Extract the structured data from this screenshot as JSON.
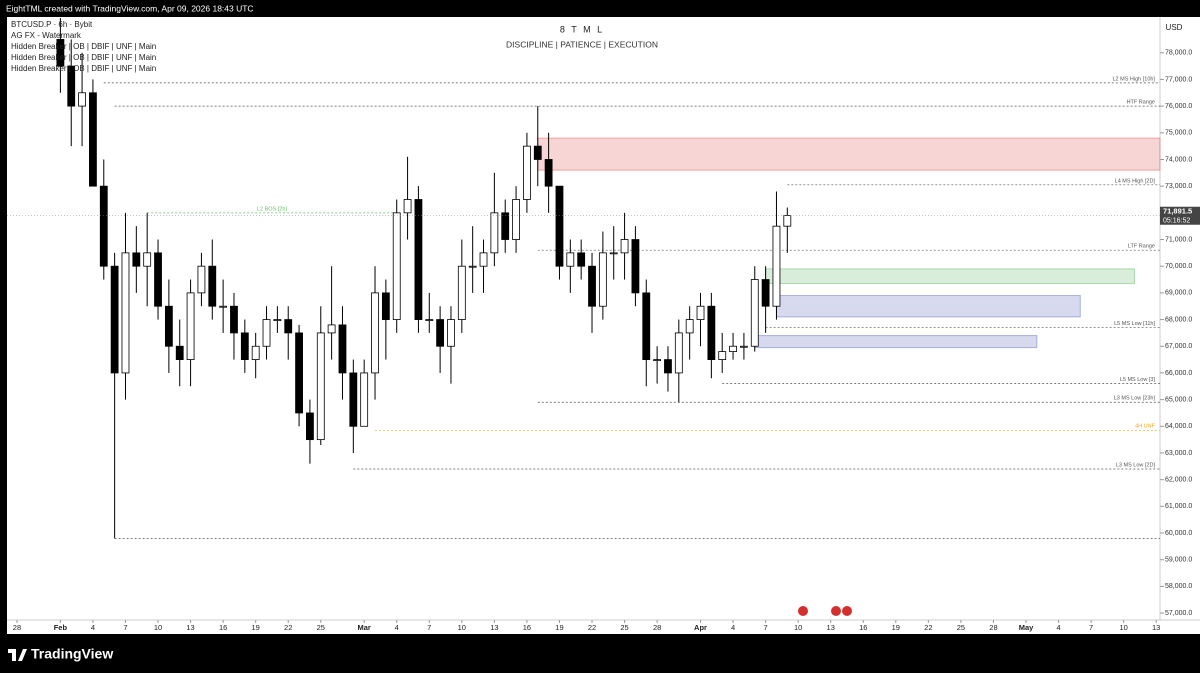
{
  "header": {
    "credit": "EightTML created with TradingView.com, Apr 09, 2026 18:43 UTC",
    "brand": "TradingView"
  },
  "chart_data": {
    "type": "candlestick",
    "title": "8 T M L",
    "subtitle": "DISCIPLINE | PATIENCE | EXECUTION",
    "legend_lines": [
      "BTCUSD.P · 6h · Bybit",
      "AG FX - Watermark",
      "Hidden Breaker | OB | DBIF | UNF | Main",
      "Hidden Breaker | OB | DBIF | UNF | Main",
      "Hidden Breaker | OB | DBIF | UNF | Main"
    ],
    "currency": "USD",
    "up_color": "#ffffff",
    "down_color": "#000000",
    "wick_color": "#000000",
    "x": [
      4,
      5,
      6,
      7,
      8,
      9,
      10,
      11,
      12,
      13,
      14,
      15,
      16,
      17,
      18,
      19,
      20,
      21,
      22,
      23,
      24,
      25,
      26,
      27,
      28,
      29,
      30,
      31,
      32,
      33,
      34,
      35,
      36,
      37,
      38,
      39,
      40,
      41,
      42,
      43,
      44,
      45,
      46,
      47,
      48,
      49,
      50,
      51,
      52,
      53,
      54,
      55,
      56,
      57,
      58,
      59,
      60,
      61,
      62,
      63,
      64,
      65,
      66,
      67,
      68,
      69,
      70,
      71
    ],
    "open": [
      78500,
      77500,
      76000,
      76500,
      73000,
      70000,
      66000,
      70500,
      70000,
      70500,
      68500,
      67000,
      66500,
      69000,
      70000,
      68500,
      68500,
      67500,
      66500,
      67000,
      68000,
      68000,
      67500,
      64500,
      63500,
      67500,
      67800,
      66000,
      64000,
      66000,
      69000,
      68000,
      72000,
      72500,
      68000,
      68000,
      67000,
      68000,
      70000,
      70000,
      70500,
      72000,
      71000,
      72500,
      74500,
      74000,
      73000,
      70000,
      70500,
      70000,
      68500,
      70500,
      70500,
      71000,
      69000,
      66500,
      66500,
      66000,
      67500,
      68000,
      68500,
      66500,
      66800,
      67000,
      67000,
      69500,
      68500,
      71500
    ],
    "high": [
      79300,
      78500,
      78000,
      77000,
      74000,
      70500,
      72000,
      71500,
      72000,
      71000,
      69500,
      68000,
      69500,
      70500,
      71000,
      69500,
      69000,
      68000,
      67500,
      68500,
      68500,
      68500,
      67800,
      65000,
      68500,
      70000,
      68500,
      66500,
      66500,
      70000,
      69500,
      72500,
      74100,
      73000,
      69000,
      68500,
      68500,
      71000,
      71500,
      71000,
      73500,
      72500,
      73000,
      75000,
      76000,
      75000,
      73000,
      71000,
      71000,
      70500,
      71300,
      71500,
      72000,
      71500,
      69500,
      67000,
      67000,
      68000,
      68500,
      69000,
      69000,
      67500,
      67500,
      67500,
      70000,
      70000,
      72800,
      72200
    ],
    "low": [
      76500,
      74500,
      74500,
      73000,
      69500,
      59800,
      65000,
      69000,
      68500,
      68000,
      66000,
      65500,
      65500,
      68500,
      68000,
      67500,
      66500,
      66000,
      65800,
      66500,
      67500,
      66500,
      64000,
      62600,
      63300,
      66500,
      65000,
      63000,
      64000,
      65000,
      66500,
      67500,
      71000,
      67500,
      67500,
      66000,
      65600,
      67500,
      69000,
      69000,
      70000,
      70500,
      70500,
      72000,
      73000,
      72000,
      69500,
      69000,
      69500,
      67500,
      68000,
      69500,
      69500,
      68500,
      65500,
      65600,
      65300,
      64900,
      66500,
      67000,
      65800,
      66000,
      66500,
      66500,
      66800,
      67500,
      68000,
      70500
    ],
    "close": [
      77500,
      76000,
      76500,
      73000,
      70000,
      66000,
      70500,
      70000,
      70500,
      68500,
      67000,
      66500,
      69000,
      70000,
      68500,
      68500,
      67500,
      66500,
      67000,
      68000,
      68000,
      67500,
      64500,
      63500,
      67500,
      67800,
      66000,
      64000,
      66000,
      69000,
      68000,
      72000,
      72500,
      68000,
      68000,
      67000,
      68000,
      70000,
      70000,
      70500,
      72000,
      71000,
      72500,
      74500,
      74000,
      73000,
      70000,
      70500,
      70000,
      68500,
      70500,
      70500,
      71000,
      69000,
      66500,
      66500,
      66000,
      67500,
      68000,
      68500,
      66500,
      66800,
      67000,
      67000,
      69500,
      68500,
      71500,
      71900
    ],
    "xlim": [
      -0.92,
      105.35
    ],
    "xticks": [
      {
        "value": 0,
        "label": "28"
      },
      {
        "value": 4,
        "label": "Feb"
      },
      {
        "value": 7,
        "label": "4"
      },
      {
        "value": 10,
        "label": "7"
      },
      {
        "value": 13,
        "label": "10"
      },
      {
        "value": 16,
        "label": "13"
      },
      {
        "value": 19,
        "label": "16"
      },
      {
        "value": 22,
        "label": "19"
      },
      {
        "value": 25,
        "label": "22"
      },
      {
        "value": 28,
        "label": "25"
      },
      {
        "value": 32,
        "label": "Mar"
      },
      {
        "value": 35,
        "label": "4"
      },
      {
        "value": 38,
        "label": "7"
      },
      {
        "value": 41,
        "label": "10"
      },
      {
        "value": 44,
        "label": "13"
      },
      {
        "value": 47,
        "label": "16"
      },
      {
        "value": 50,
        "label": "19"
      },
      {
        "value": 53,
        "label": "22"
      },
      {
        "value": 56,
        "label": "25"
      },
      {
        "value": 59,
        "label": "28"
      },
      {
        "value": 63,
        "label": "Apr"
      },
      {
        "value": 66,
        "label": "4"
      },
      {
        "value": 69,
        "label": "7"
      },
      {
        "value": 72,
        "label": "10"
      },
      {
        "value": 75,
        "label": "13"
      },
      {
        "value": 78,
        "label": "16"
      },
      {
        "value": 81,
        "label": "19"
      },
      {
        "value": 84,
        "label": "22"
      },
      {
        "value": 87,
        "label": "25"
      },
      {
        "value": 90,
        "label": "28"
      },
      {
        "value": 93,
        "label": "May"
      },
      {
        "value": 96,
        "label": "4"
      },
      {
        "value": 99,
        "label": "7"
      },
      {
        "value": 102,
        "label": "10"
      },
      {
        "value": 105,
        "label": "13"
      }
    ],
    "ylim": [
      56740,
      79340
    ],
    "yticks": [
      {
        "value": 57000,
        "label": "57,000.0"
      },
      {
        "value": 58000,
        "label": "58,000.0"
      },
      {
        "value": 59000,
        "label": "59,000.0"
      },
      {
        "value": 60000,
        "label": "60,000.0"
      },
      {
        "value": 61000,
        "label": "61,000.0"
      },
      {
        "value": 62000,
        "label": "62,000.0"
      },
      {
        "value": 63000,
        "label": "63,000.0"
      },
      {
        "value": 64000,
        "label": "64,000.0"
      },
      {
        "value": 65000,
        "label": "65,000.0"
      },
      {
        "value": 66000,
        "label": "66,000.0"
      },
      {
        "value": 67000,
        "label": "67,000.0"
      },
      {
        "value": 68000,
        "label": "68,000.0"
      },
      {
        "value": 69000,
        "label": "69,000.0"
      },
      {
        "value": 70000,
        "label": "70,000.0"
      },
      {
        "value": 71000,
        "label": "71,000.0"
      },
      {
        "value": 72000,
        "label": "72,000.0"
      },
      {
        "value": 73000,
        "label": "73,000.0"
      },
      {
        "value": 74000,
        "label": "74,000.0"
      },
      {
        "value": 75000,
        "label": "75,000.0"
      },
      {
        "value": 76000,
        "label": "76,000.0"
      },
      {
        "value": 77000,
        "label": "77,000.0"
      },
      {
        "value": 78000,
        "label": "78,000.0"
      }
    ],
    "last_price": {
      "value": 71891.5,
      "label": "71,891.5"
    },
    "countdown": "05:16:52",
    "levels": [
      {
        "label": "L2 MS High [10h]",
        "value": 76870,
        "start": 8,
        "color": "#555555"
      },
      {
        "label": "HTF Range",
        "value": 76000,
        "start": 9,
        "color": "#555555"
      },
      {
        "label": "L2 BOS [2h]",
        "value": 72000,
        "start": 12,
        "end": 35,
        "color": "#66bb6a"
      },
      {
        "label": "L4 MS High [2D]",
        "value": 73050,
        "start": 71,
        "color": "#555555"
      },
      {
        "label": "LTF Range",
        "value": 70600,
        "start": 48,
        "color": "#555555"
      },
      {
        "label": "L5 MS Low [11h]",
        "value": 67700,
        "start": 69,
        "color": "#555555"
      },
      {
        "label": "L5 MS Low [3]",
        "value": 65600,
        "start": 65,
        "color": "#555555"
      },
      {
        "label": "L3 MS Low [23h]",
        "value": 64900,
        "start": 48,
        "color": "#555555"
      },
      {
        "label": "4H UNF",
        "value": 63850,
        "start": 33,
        "color": "#f5a623"
      },
      {
        "label": "L3 MS Low [2D]",
        "value": 62400,
        "start": 31,
        "color": "#555555"
      },
      {
        "value": 59800,
        "start": 9,
        "color": "#555555"
      }
    ],
    "zones": [
      {
        "low": 73600,
        "high": 74800,
        "start": 48,
        "color": "#e57373"
      },
      {
        "low": 69350,
        "high": 69900,
        "start": 69,
        "end": 103,
        "color": "#81c784"
      },
      {
        "low": 68100,
        "high": 68900,
        "start": 70,
        "end": 98,
        "color": "#7986cb"
      },
      {
        "low": 66950,
        "high": 67400,
        "start": 68,
        "end": 94,
        "color": "#7986cb"
      }
    ]
  }
}
